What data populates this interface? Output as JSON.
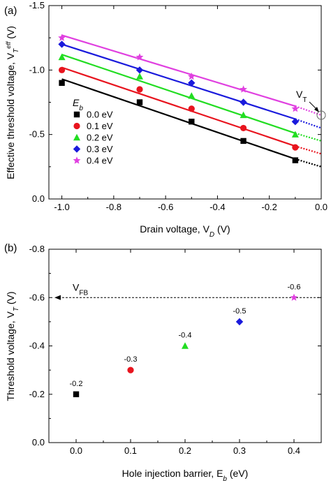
{
  "chart_data": [
    {
      "type": "line",
      "panel_label": "(a)",
      "xlabel": "Drain voltage, V",
      "xlabel_sub": "D",
      "xlabel_unit": " (V)",
      "ylabel": "Effective threshold voltage, V",
      "ylabel_sub": "T",
      "ylabel_sup": "eff",
      "ylabel_unit": " (V)",
      "xlim": [
        -1.05,
        0.0
      ],
      "ylim": [
        0.0,
        -1.5
      ],
      "xticks": [
        -1.0,
        -0.8,
        -0.6,
        -0.4,
        -0.2,
        0.0
      ],
      "xtick_labels": [
        "-1.0",
        "-0.8",
        "-0.6",
        "-0.4",
        "-0.2",
        "0.0"
      ],
      "yticks": [
        0.0,
        -0.5,
        -1.0,
        -1.5
      ],
      "ytick_labels": [
        "0.0",
        "-0.5",
        "-1.0",
        "-1.5"
      ],
      "legend_title": "E",
      "legend_title_sub": "b",
      "legend_placement": "center-left",
      "annotation": "V",
      "annotation_sub": "T",
      "x": [
        -1.0,
        -0.7,
        -0.5,
        -0.3,
        -0.1
      ],
      "series": [
        {
          "name": "0.0 eV",
          "color": "#000000",
          "marker": "square",
          "values": [
            -0.9,
            -0.75,
            -0.6,
            -0.45,
            -0.3
          ],
          "fit_start": -0.93,
          "fit_end_solid": -0.31,
          "fit_end": -0.25
        },
        {
          "name": "0.1 eV",
          "color": "#e8141e",
          "marker": "circle",
          "values": [
            -1.0,
            -0.85,
            -0.7,
            -0.55,
            -0.4
          ],
          "fit_start": -1.02,
          "fit_end_solid": -0.41,
          "fit_end": -0.35
        },
        {
          "name": "0.2 eV",
          "color": "#22dd22",
          "marker": "triangle",
          "values": [
            -1.1,
            -0.95,
            -0.8,
            -0.65,
            -0.5
          ],
          "fit_start": -1.12,
          "fit_end_solid": -0.51,
          "fit_end": -0.45
        },
        {
          "name": "0.3 eV",
          "color": "#1a1adc",
          "marker": "diamond",
          "values": [
            -1.2,
            -1.0,
            -0.9,
            -0.75,
            -0.6
          ],
          "fit_start": -1.2,
          "fit_end_solid": -0.62,
          "fit_end": -0.55
        },
        {
          "name": "0.4 eV",
          "color": "#e040e0",
          "marker": "star",
          "values": [
            -1.25,
            -1.1,
            -0.95,
            -0.85,
            -0.7
          ],
          "fit_start": -1.27,
          "fit_end_solid": -0.72,
          "fit_end": -0.65
        }
      ]
    },
    {
      "type": "scatter",
      "panel_label": "(b)",
      "xlabel": "Hole injection barrier, E",
      "xlabel_sub": "b",
      "xlabel_unit": " (eV)",
      "ylabel": "Threshold voltage, V",
      "ylabel_sub": "T",
      "ylabel_unit": " (V)",
      "xlim": [
        -0.05,
        0.45
      ],
      "ylim": [
        0.0,
        -0.8
      ],
      "xticks": [
        0.0,
        0.1,
        0.2,
        0.3,
        0.4
      ],
      "xtick_labels": [
        "0.0",
        "0.1",
        "0.2",
        "0.3",
        "0.4"
      ],
      "yticks": [
        0.0,
        -0.2,
        -0.4,
        -0.6,
        -0.8
      ],
      "ytick_labels": [
        "0.0",
        "-0.2",
        "-0.4",
        "-0.6",
        "-0.8"
      ],
      "reference_line": {
        "label": "V",
        "label_sub": "FB",
        "y": -0.6
      },
      "points": [
        {
          "x": 0.0,
          "y": -0.2,
          "label": "-0.2",
          "color": "#000000",
          "marker": "square"
        },
        {
          "x": 0.1,
          "y": -0.3,
          "label": "-0.3",
          "color": "#e8141e",
          "marker": "circle"
        },
        {
          "x": 0.2,
          "y": -0.4,
          "label": "-0.4",
          "color": "#22dd22",
          "marker": "triangle"
        },
        {
          "x": 0.3,
          "y": -0.5,
          "label": "-0.5",
          "color": "#1a1adc",
          "marker": "diamond"
        },
        {
          "x": 0.4,
          "y": -0.6,
          "label": "-0.6",
          "color": "#e040e0",
          "marker": "star"
        }
      ]
    }
  ]
}
